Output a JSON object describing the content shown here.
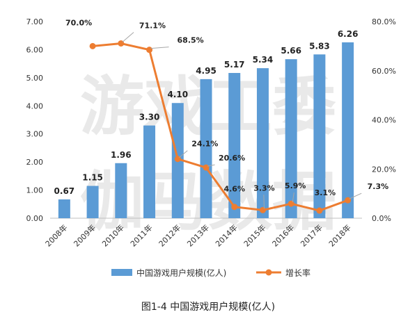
{
  "caption": "图1-4  中国游戏用户规模(亿人)",
  "watermark": [
    "游戏工委",
    "伽马数据"
  ],
  "chart_data": {
    "type": "bar",
    "categories": [
      "2008年",
      "2009年",
      "2010年",
      "2011年",
      "2012年",
      "2013年",
      "2014年",
      "2015年",
      "2016年",
      "2017年",
      "2018年"
    ],
    "series": [
      {
        "name": "中国游戏用户规模(亿人)",
        "type": "bar",
        "axis": "left",
        "values": [
          0.67,
          1.15,
          1.96,
          3.3,
          4.1,
          4.95,
          5.17,
          5.34,
          5.66,
          5.83,
          6.26
        ],
        "labels": [
          "0.67",
          "1.15",
          "1.96",
          "3.30",
          "4.10",
          "4.95",
          "5.17",
          "5.34",
          "5.66",
          "5.83",
          "6.26"
        ],
        "color": "#5b9bd5"
      },
      {
        "name": "增长率",
        "type": "line",
        "axis": "right",
        "values": [
          null,
          70.0,
          71.1,
          68.5,
          24.1,
          20.6,
          4.6,
          3.3,
          5.9,
          3.1,
          7.3
        ],
        "labels": [
          "",
          "70.0%",
          "71.1%",
          "68.5%",
          "24.1%",
          "20.6%",
          "4.6%",
          "3.3%",
          "5.9%",
          "3.1%",
          "7.3%"
        ],
        "color": "#ed7d31"
      }
    ],
    "y_left": {
      "ylim": [
        0,
        7
      ],
      "ticks": [
        "0.00",
        "1.00",
        "2.00",
        "3.00",
        "4.00",
        "5.00",
        "6.00",
        "7.00"
      ]
    },
    "y_right": {
      "ylim": [
        0,
        80
      ],
      "ticks": [
        "0.0%",
        "20.0%",
        "40.0%",
        "60.0%",
        "80.0%"
      ]
    },
    "legend_position": "bottom",
    "grid": false
  }
}
